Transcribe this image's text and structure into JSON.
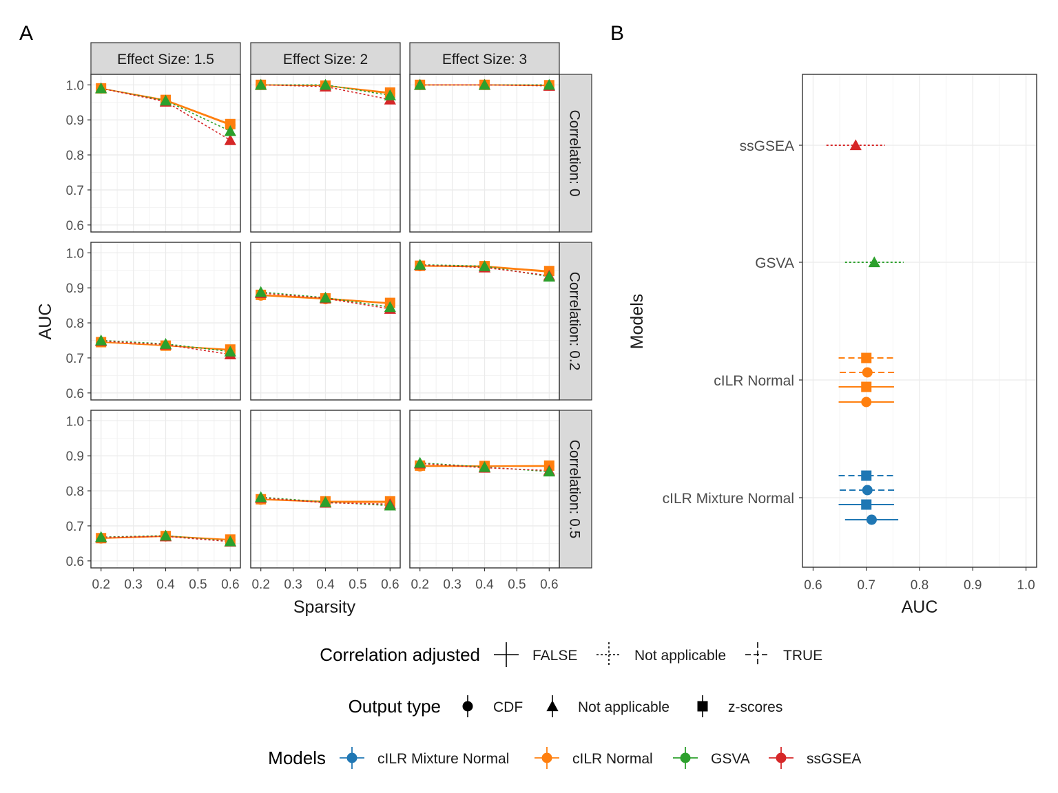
{
  "figure": {
    "panel_a_label": "A",
    "panel_b_label": "B"
  },
  "chart_data": [
    {
      "type": "line",
      "title": "A",
      "xlabel": "Sparsity",
      "ylabel": "AUC",
      "x_ticks": [
        0.2,
        0.3,
        0.4,
        0.5,
        0.6
      ],
      "x_tick_labels": [
        "0.2",
        "0.3",
        "0.4",
        "0.5",
        "0.6"
      ],
      "y_ticks": [
        0.6,
        0.7,
        0.8,
        0.9,
        1.0
      ],
      "y_tick_labels": [
        "0.6",
        "0.7",
        "0.8",
        "0.9",
        "1.0"
      ],
      "xlim": [
        0.19,
        0.61
      ],
      "ylim": [
        0.58,
        1.03
      ],
      "col_labels": [
        "Effect Size: 1.5",
        "Effect Size: 2",
        "Effect Size: 3"
      ],
      "row_labels": [
        "Correlation: 0",
        "Correlation: 0.2",
        "Correlation: 0.5"
      ],
      "x": [
        0.2,
        0.4,
        0.6
      ],
      "panels": [
        {
          "row": 0,
          "col": 0,
          "series": [
            {
              "name": "cILR Normal CDF",
              "model": "cILR Normal",
              "output": "CDF",
              "adjusted": "FALSE",
              "values": [
                0.99,
                0.955,
                0.885
              ]
            },
            {
              "name": "cILR Normal z-scores",
              "model": "cILR Normal",
              "output": "z-scores",
              "adjusted": "FALSE",
              "values": [
                0.99,
                0.957,
                0.888
              ]
            },
            {
              "name": "GSVA",
              "model": "GSVA",
              "output": "Not applicable",
              "adjusted": "Not applicable",
              "values": [
                0.99,
                0.955,
                0.868
              ]
            },
            {
              "name": "ssGSEA",
              "model": "ssGSEA",
              "output": "Not applicable",
              "adjusted": "Not applicable",
              "values": [
                0.99,
                0.952,
                0.842
              ]
            }
          ]
        },
        {
          "row": 0,
          "col": 1,
          "series": [
            {
              "name": "cILR Normal CDF",
              "model": "cILR Normal",
              "output": "CDF",
              "adjusted": "FALSE",
              "values": [
                1.0,
                0.998,
                0.975
              ]
            },
            {
              "name": "cILR Normal z-scores",
              "model": "cILR Normal",
              "output": "z-scores",
              "adjusted": "FALSE",
              "values": [
                1.0,
                0.998,
                0.978
              ]
            },
            {
              "name": "GSVA",
              "model": "GSVA",
              "output": "Not applicable",
              "adjusted": "Not applicable",
              "values": [
                1.0,
                1.0,
                0.97
              ]
            },
            {
              "name": "ssGSEA",
              "model": "ssGSEA",
              "output": "Not applicable",
              "adjusted": "Not applicable",
              "values": [
                1.0,
                0.995,
                0.958
              ]
            }
          ]
        },
        {
          "row": 0,
          "col": 2,
          "series": [
            {
              "name": "cILR Normal CDF",
              "model": "cILR Normal",
              "output": "CDF",
              "adjusted": "FALSE",
              "values": [
                1.0,
                1.0,
                0.998
              ]
            },
            {
              "name": "cILR Normal z-scores",
              "model": "cILR Normal",
              "output": "z-scores",
              "adjusted": "FALSE",
              "values": [
                1.0,
                1.0,
                0.999
              ]
            },
            {
              "name": "GSVA",
              "model": "GSVA",
              "output": "Not applicable",
              "adjusted": "Not applicable",
              "values": [
                1.0,
                1.0,
                1.0
              ]
            },
            {
              "name": "ssGSEA",
              "model": "ssGSEA",
              "output": "Not applicable",
              "adjusted": "Not applicable",
              "values": [
                1.0,
                1.0,
                0.997
              ]
            }
          ]
        },
        {
          "row": 1,
          "col": 0,
          "series": [
            {
              "name": "cILR Normal CDF",
              "model": "cILR Normal",
              "output": "CDF",
              "adjusted": "FALSE",
              "values": [
                0.745,
                0.735,
                0.722
              ]
            },
            {
              "name": "cILR Normal z-scores",
              "model": "cILR Normal",
              "output": "z-scores",
              "adjusted": "FALSE",
              "values": [
                0.745,
                0.735,
                0.724
              ]
            },
            {
              "name": "GSVA",
              "model": "GSVA",
              "output": "Not applicable",
              "adjusted": "Not applicable",
              "values": [
                0.75,
                0.74,
                0.718
              ]
            },
            {
              "name": "ssGSEA",
              "model": "ssGSEA",
              "output": "Not applicable",
              "adjusted": "Not applicable",
              "values": [
                0.748,
                0.738,
                0.71
              ]
            }
          ]
        },
        {
          "row": 1,
          "col": 1,
          "series": [
            {
              "name": "cILR Normal CDF",
              "model": "cILR Normal",
              "output": "CDF",
              "adjusted": "FALSE",
              "values": [
                0.878,
                0.868,
                0.855
              ]
            },
            {
              "name": "cILR Normal z-scores",
              "model": "cILR Normal",
              "output": "z-scores",
              "adjusted": "FALSE",
              "values": [
                0.88,
                0.87,
                0.857
              ]
            },
            {
              "name": "GSVA",
              "model": "GSVA",
              "output": "Not applicable",
              "adjusted": "Not applicable",
              "values": [
                0.888,
                0.872,
                0.845
              ]
            },
            {
              "name": "ssGSEA",
              "model": "ssGSEA",
              "output": "Not applicable",
              "adjusted": "Not applicable",
              "values": [
                0.885,
                0.87,
                0.84
              ]
            }
          ]
        },
        {
          "row": 1,
          "col": 2,
          "series": [
            {
              "name": "cILR Normal CDF",
              "model": "cILR Normal",
              "output": "CDF",
              "adjusted": "FALSE",
              "values": [
                0.962,
                0.96,
                0.945
              ]
            },
            {
              "name": "cILR Normal z-scores",
              "model": "cILR Normal",
              "output": "z-scores",
              "adjusted": "FALSE",
              "values": [
                0.963,
                0.962,
                0.948
              ]
            },
            {
              "name": "GSVA",
              "model": "GSVA",
              "output": "Not applicable",
              "adjusted": "Not applicable",
              "values": [
                0.966,
                0.962,
                0.932
              ]
            },
            {
              "name": "ssGSEA",
              "model": "ssGSEA",
              "output": "Not applicable",
              "adjusted": "Not applicable",
              "values": [
                0.965,
                0.958,
                0.935
              ]
            }
          ]
        },
        {
          "row": 2,
          "col": 0,
          "series": [
            {
              "name": "cILR Normal CDF",
              "model": "cILR Normal",
              "output": "CDF",
              "adjusted": "FALSE",
              "values": [
                0.664,
                0.67,
                0.66
              ]
            },
            {
              "name": "cILR Normal z-scores",
              "model": "cILR Normal",
              "output": "z-scores",
              "adjusted": "FALSE",
              "values": [
                0.665,
                0.671,
                0.661
              ]
            },
            {
              "name": "GSVA",
              "model": "GSVA",
              "output": "Not applicable",
              "adjusted": "Not applicable",
              "values": [
                0.668,
                0.672,
                0.656
              ]
            },
            {
              "name": "ssGSEA",
              "model": "ssGSEA",
              "output": "Not applicable",
              "adjusted": "Not applicable",
              "values": [
                0.667,
                0.67,
                0.655
              ]
            }
          ]
        },
        {
          "row": 2,
          "col": 1,
          "series": [
            {
              "name": "cILR Normal CDF",
              "model": "cILR Normal",
              "output": "CDF",
              "adjusted": "FALSE",
              "values": [
                0.775,
                0.768,
                0.767
              ]
            },
            {
              "name": "cILR Normal z-scores",
              "model": "cILR Normal",
              "output": "z-scores",
              "adjusted": "FALSE",
              "values": [
                0.776,
                0.77,
                0.77
              ]
            },
            {
              "name": "GSVA",
              "model": "GSVA",
              "output": "Not applicable",
              "adjusted": "Not applicable",
              "values": [
                0.782,
                0.768,
                0.758
              ]
            },
            {
              "name": "ssGSEA",
              "model": "ssGSEA",
              "output": "Not applicable",
              "adjusted": "Not applicable",
              "values": [
                0.78,
                0.766,
                0.762
              ]
            }
          ]
        },
        {
          "row": 2,
          "col": 2,
          "series": [
            {
              "name": "cILR Normal CDF",
              "model": "cILR Normal",
              "output": "CDF",
              "adjusted": "FALSE",
              "values": [
                0.87,
                0.87,
                0.87
              ]
            },
            {
              "name": "cILR Normal z-scores",
              "model": "cILR Normal",
              "output": "z-scores",
              "adjusted": "FALSE",
              "values": [
                0.872,
                0.871,
                0.872
              ]
            },
            {
              "name": "GSVA",
              "model": "GSVA",
              "output": "Not applicable",
              "adjusted": "Not applicable",
              "values": [
                0.88,
                0.868,
                0.855
              ]
            },
            {
              "name": "ssGSEA",
              "model": "ssGSEA",
              "output": "Not applicable",
              "adjusted": "Not applicable",
              "values": [
                0.878,
                0.866,
                0.858
              ]
            }
          ]
        }
      ]
    },
    {
      "type": "scatter",
      "title": "B",
      "xlabel": "AUC",
      "ylabel": "Models",
      "x_ticks": [
        0.6,
        0.7,
        0.8,
        0.9,
        1.0
      ],
      "x_tick_labels": [
        "0.6",
        "0.7",
        "0.8",
        "0.9",
        "1.0"
      ],
      "xlim": [
        0.58,
        1.02
      ],
      "categories": [
        "ssGSEA",
        "GSVA",
        "cILR Normal",
        "cILR Mixture Normal"
      ],
      "points": [
        {
          "model": "ssGSEA",
          "output": "Not applicable",
          "adjusted": "Not applicable",
          "auc": 0.68,
          "low": 0.625,
          "high": 0.735
        },
        {
          "model": "GSVA",
          "output": "Not applicable",
          "adjusted": "Not applicable",
          "auc": 0.715,
          "low": 0.66,
          "high": 0.77
        },
        {
          "model": "cILR Normal",
          "output": "z-scores",
          "adjusted": "TRUE",
          "auc": 0.7,
          "low": 0.648,
          "high": 0.752
        },
        {
          "model": "cILR Normal",
          "output": "CDF",
          "adjusted": "TRUE",
          "auc": 0.702,
          "low": 0.65,
          "high": 0.754
        },
        {
          "model": "cILR Normal",
          "output": "z-scores",
          "adjusted": "FALSE",
          "auc": 0.7,
          "low": 0.648,
          "high": 0.752
        },
        {
          "model": "cILR Normal",
          "output": "CDF",
          "adjusted": "FALSE",
          "auc": 0.7,
          "low": 0.648,
          "high": 0.752
        },
        {
          "model": "cILR Mixture Normal",
          "output": "z-scores",
          "adjusted": "TRUE",
          "auc": 0.7,
          "low": 0.648,
          "high": 0.752
        },
        {
          "model": "cILR Mixture Normal",
          "output": "CDF",
          "adjusted": "TRUE",
          "auc": 0.702,
          "low": 0.65,
          "high": 0.754
        },
        {
          "model": "cILR Mixture Normal",
          "output": "z-scores",
          "adjusted": "FALSE",
          "auc": 0.7,
          "low": 0.648,
          "high": 0.752
        },
        {
          "model": "cILR Mixture Normal",
          "output": "CDF",
          "adjusted": "FALSE",
          "auc": 0.71,
          "low": 0.66,
          "high": 0.76
        }
      ]
    }
  ],
  "legend": {
    "correlation": {
      "title": "Correlation adjusted",
      "items": [
        {
          "label": "FALSE",
          "dash": "solid"
        },
        {
          "label": "Not applicable",
          "dash": "dotted"
        },
        {
          "label": "TRUE",
          "dash": "dashed"
        }
      ]
    },
    "output": {
      "title": "Output type",
      "items": [
        {
          "label": "CDF",
          "shape": "circle"
        },
        {
          "label": "Not applicable",
          "shape": "triangle"
        },
        {
          "label": "z-scores",
          "shape": "square"
        }
      ]
    },
    "models": {
      "title": "Models",
      "items": [
        {
          "label": "cILR Mixture Normal",
          "color": "#1f77b4"
        },
        {
          "label": "cILR Normal",
          "color": "#ff7f0e"
        },
        {
          "label": "GSVA",
          "color": "#2ca02c"
        },
        {
          "label": "ssGSEA",
          "color": "#d62728"
        }
      ]
    }
  },
  "colors": {
    "cILR Mixture Normal": "#1f77b4",
    "cILR Normal": "#ff7f0e",
    "GSVA": "#2ca02c",
    "ssGSEA": "#d62728",
    "strip_fill": "#d9d9d9",
    "grid": "#ebebeb"
  }
}
